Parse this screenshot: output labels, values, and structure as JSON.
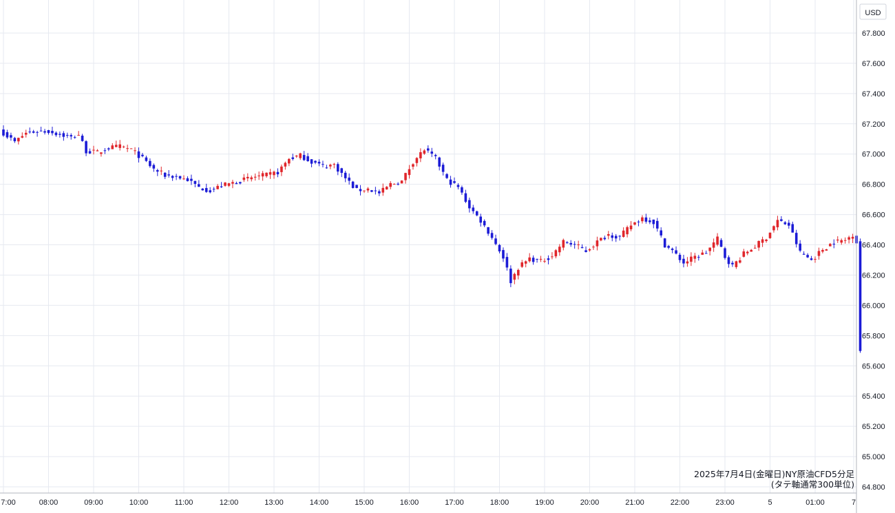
{
  "currency_label": "USD",
  "chart_data": {
    "type": "candlestick",
    "title": "",
    "xlabel": "",
    "ylabel": "",
    "ylim": [
      64.8,
      67.9
    ],
    "y_ticks": [
      "64.800",
      "65.000",
      "65.200",
      "65.400",
      "65.600",
      "65.800",
      "66.000",
      "66.200",
      "66.400",
      "66.600",
      "66.800",
      "67.000",
      "67.200",
      "67.400",
      "67.600",
      "67.800"
    ],
    "x_ticks": [
      "7:00",
      "08:00",
      "09:00",
      "10:00",
      "11:00",
      "12:00",
      "13:00",
      "14:00",
      "15:00",
      "16:00",
      "17:00",
      "18:00",
      "19:00",
      "20:00",
      "21:00",
      "22:00",
      "23:00",
      "5",
      "01:00",
      "7"
    ],
    "grid": true,
    "up_color": "#e0262b",
    "down_color": "#1c1cd6",
    "annotation_lines": [
      "2025年7月4日(金曜日)NY原油CFD5分足",
      "(タテ軸通常300単位)"
    ],
    "close_anchors": [
      [
        0,
        67.14
      ],
      [
        3,
        67.08
      ],
      [
        6,
        67.14
      ],
      [
        9,
        67.15
      ],
      [
        12,
        67.15
      ],
      [
        15,
        67.13
      ],
      [
        18,
        67.11
      ],
      [
        20,
        67.13
      ],
      [
        22,
        67.02
      ],
      [
        25,
        67.01
      ],
      [
        28,
        67.04
      ],
      [
        31,
        67.05
      ],
      [
        34,
        67.03
      ],
      [
        37,
        66.97
      ],
      [
        40,
        66.9
      ],
      [
        43,
        66.86
      ],
      [
        46,
        66.85
      ],
      [
        49,
        66.83
      ],
      [
        52,
        66.78
      ],
      [
        55,
        66.76
      ],
      [
        58,
        66.79
      ],
      [
        61,
        66.81
      ],
      [
        64,
        66.83
      ],
      [
        67,
        66.85
      ],
      [
        70,
        66.86
      ],
      [
        73,
        66.88
      ],
      [
        76,
        66.97
      ],
      [
        79,
        66.99
      ],
      [
        82,
        66.95
      ],
      [
        85,
        66.92
      ],
      [
        88,
        66.93
      ],
      [
        91,
        66.84
      ],
      [
        94,
        66.76
      ],
      [
        97,
        66.77
      ],
      [
        100,
        66.74
      ],
      [
        103,
        66.8
      ],
      [
        106,
        66.82
      ],
      [
        109,
        66.95
      ],
      [
        112,
        67.03
      ],
      [
        115,
        66.97
      ],
      [
        118,
        66.83
      ],
      [
        121,
        66.78
      ],
      [
        124,
        66.65
      ],
      [
        127,
        66.56
      ],
      [
        130,
        66.45
      ],
      [
        133,
        66.32
      ],
      [
        135,
        66.16
      ],
      [
        137,
        66.25
      ],
      [
        140,
        66.31
      ],
      [
        143,
        66.29
      ],
      [
        146,
        66.33
      ],
      [
        149,
        66.42
      ],
      [
        152,
        66.4
      ],
      [
        155,
        66.36
      ],
      [
        158,
        66.42
      ],
      [
        161,
        66.47
      ],
      [
        164,
        66.45
      ],
      [
        167,
        66.53
      ],
      [
        170,
        66.58
      ],
      [
        173,
        66.55
      ],
      [
        176,
        66.4
      ],
      [
        178,
        66.36
      ],
      [
        181,
        66.28
      ],
      [
        184,
        66.32
      ],
      [
        187,
        66.35
      ],
      [
        190,
        66.44
      ],
      [
        192,
        66.32
      ],
      [
        194,
        66.26
      ],
      [
        197,
        66.34
      ],
      [
        200,
        66.39
      ],
      [
        203,
        66.45
      ],
      [
        206,
        66.56
      ],
      [
        209,
        66.53
      ],
      [
        212,
        66.35
      ],
      [
        215,
        66.3
      ],
      [
        218,
        66.37
      ],
      [
        221,
        66.42
      ],
      [
        224,
        66.43
      ],
      [
        226,
        66.47
      ],
      [
        227,
        66.42
      ],
      [
        228,
        65.7
      ]
    ]
  }
}
